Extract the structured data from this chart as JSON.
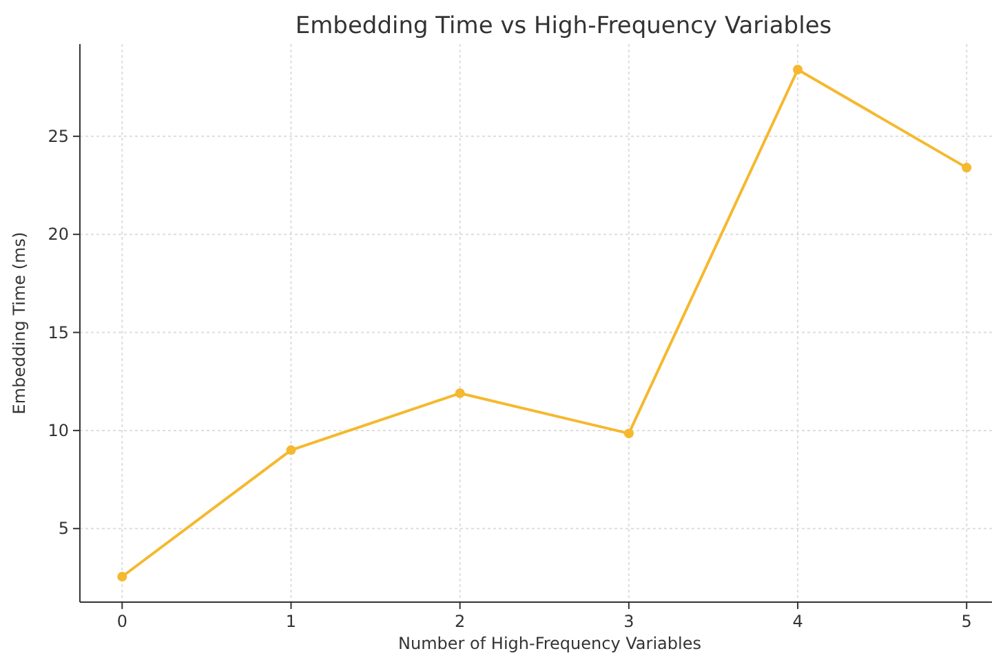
{
  "chart_data": {
    "type": "line",
    "title": "Embedding Time vs High-Frequency Variables",
    "xlabel": "Number of High-Frequency Variables",
    "ylabel": "Embedding Time (ms)",
    "x": [
      0,
      1,
      2,
      3,
      4,
      5
    ],
    "series": [
      {
        "color": "#f5b82e",
        "values": [
          2.55,
          9.0,
          11.9,
          9.85,
          28.4,
          23.4
        ]
      }
    ],
    "xlim": [
      -0.25,
      5.15
    ],
    "xticks": [
      0,
      1,
      2,
      3,
      4,
      5
    ],
    "ylim": [
      1.25,
      29.7
    ],
    "yticks": [
      5,
      10,
      15,
      20,
      25
    ],
    "grid": true,
    "marker": "circle",
    "line_style": "solid"
  }
}
